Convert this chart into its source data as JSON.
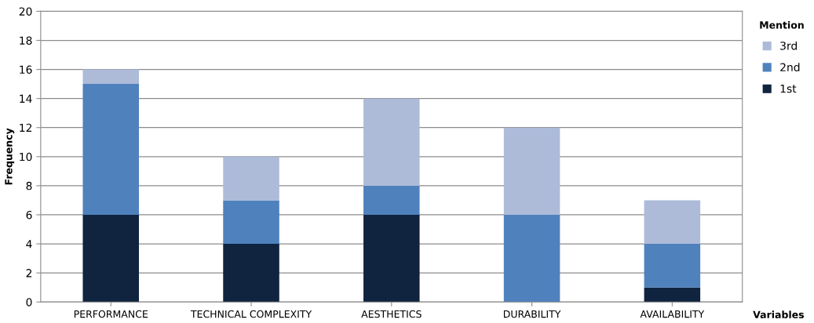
{
  "chart_data": {
    "type": "bar",
    "stacked": true,
    "xlabel": "Variables",
    "ylabel": "Frequency",
    "legend_title": "Mention",
    "categories": [
      "PERFORMANCE",
      "TECHNICAL COMPLEXITY",
      "AESTHETICS",
      "DURABILITY",
      "AVAILABILITY"
    ],
    "series": [
      {
        "name": "1st",
        "color": "#10243f",
        "values": [
          6,
          4,
          6,
          0,
          1
        ]
      },
      {
        "name": "2nd",
        "color": "#4f81bd",
        "values": [
          9,
          3,
          2,
          6,
          3
        ]
      },
      {
        "name": "3rd",
        "color": "#adbbd9",
        "values": [
          1,
          3,
          6,
          6,
          3
        ]
      }
    ],
    "ylim": [
      0,
      20
    ],
    "yticks": [
      0,
      2,
      4,
      6,
      8,
      10,
      12,
      14,
      16,
      18,
      20
    ],
    "grid": "y",
    "legend": "right"
  }
}
